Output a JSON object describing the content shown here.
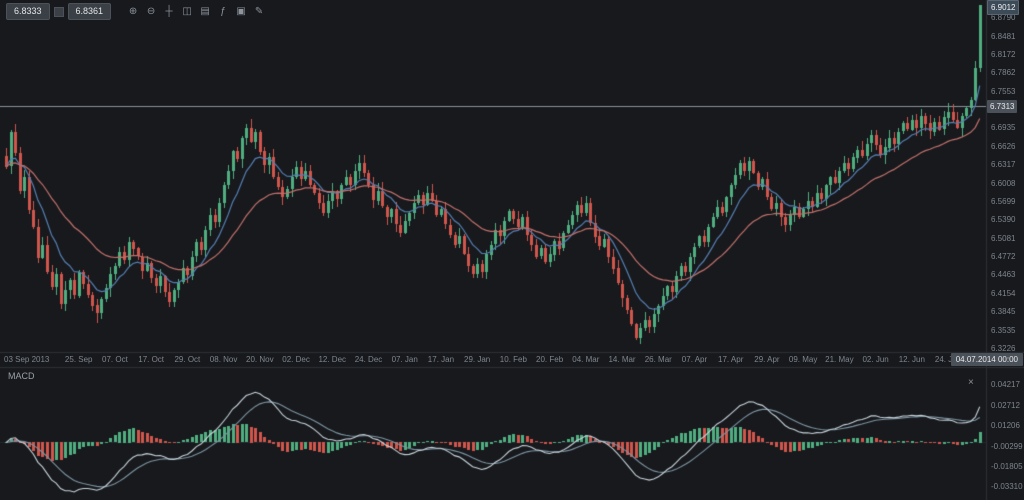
{
  "colors": {
    "background": "#17191d",
    "up": "#4fae7f",
    "down": "#d0554b",
    "ma_fast": "#567fb2",
    "ma_slow": "#c2706b",
    "macd_line": "#c8d4da",
    "macd_signal": "#7e95a3",
    "price_line": "#8a9199",
    "axis_text": "#7f868e",
    "separator": "#2b2f34"
  },
  "toolbar": {
    "sell_price": "6.8333",
    "buy_price": "6.8361",
    "icons": [
      {
        "name": "zoom-in-icon",
        "glyph": "⊕"
      },
      {
        "name": "zoom-out-icon",
        "glyph": "⊖"
      },
      {
        "name": "crosshair-icon",
        "glyph": "┼"
      },
      {
        "name": "candlestick-icon",
        "glyph": "◫"
      },
      {
        "name": "chart-type-icon",
        "glyph": "▤"
      },
      {
        "name": "indicators-icon",
        "glyph": "ƒ"
      },
      {
        "name": "snapshot-icon",
        "glyph": "▣"
      },
      {
        "name": "draw-icon",
        "glyph": "✎"
      }
    ]
  },
  "chart_data": {
    "type": "candlestick",
    "ylim": [
      6.3226,
      6.9012
    ],
    "first_open": 6.648,
    "closes": [
      6.63,
      6.688,
      6.652,
      6.588,
      6.612,
      6.556,
      6.528,
      6.476,
      6.498,
      6.452,
      6.426,
      6.448,
      6.398,
      6.422,
      6.438,
      6.412,
      6.452,
      6.432,
      6.414,
      6.396,
      6.382,
      6.406,
      6.425,
      6.448,
      6.462,
      6.486,
      6.472,
      6.503,
      6.492,
      6.478,
      6.455,
      6.468,
      6.442,
      6.428,
      6.445,
      6.418,
      6.402,
      6.422,
      6.435,
      6.458,
      6.446,
      6.478,
      6.502,
      6.488,
      6.522,
      6.548,
      6.536,
      6.568,
      6.598,
      6.622,
      6.655,
      6.642,
      6.678,
      6.695,
      6.672,
      6.688,
      6.655,
      6.632,
      6.645,
      6.612,
      6.595,
      6.578,
      6.592,
      6.612,
      6.628,
      6.608,
      6.622,
      6.598,
      6.585,
      6.568,
      6.552,
      6.572,
      6.588,
      6.575,
      6.598,
      6.612,
      6.598,
      6.622,
      6.635,
      6.618,
      6.598,
      6.572,
      6.588,
      6.562,
      6.545,
      6.558,
      6.532,
      6.518,
      6.538,
      6.552,
      6.568,
      6.582,
      6.565,
      6.585,
      6.572,
      6.548,
      6.558,
      6.532,
      6.515,
      6.498,
      6.512,
      6.482,
      6.462,
      6.448,
      6.465,
      6.452,
      6.482,
      6.498,
      6.522,
      6.512,
      6.538,
      6.555,
      6.542,
      6.528,
      6.545,
      6.515,
      6.498,
      6.478,
      6.492,
      6.468,
      6.482,
      6.505,
      6.492,
      6.518,
      6.532,
      6.548,
      6.565,
      6.552,
      6.568,
      6.535,
      6.512,
      6.495,
      6.508,
      6.478,
      6.458,
      6.432,
      6.408,
      6.388,
      6.365,
      6.342,
      6.358,
      6.372,
      6.36,
      6.382,
      6.395,
      6.412,
      6.428,
      6.418,
      6.445,
      6.462,
      6.452,
      6.478,
      6.495,
      6.512,
      6.502,
      6.528,
      6.545,
      6.562,
      6.552,
      6.578,
      6.598,
      6.615,
      6.635,
      6.622,
      6.638,
      6.618,
      6.595,
      6.608,
      6.578,
      6.558,
      6.568,
      6.545,
      6.532,
      6.548,
      6.562,
      6.545,
      6.558,
      6.572,
      6.562,
      6.585,
      6.575,
      6.598,
      6.612,
      6.602,
      6.622,
      6.635,
      6.625,
      6.645,
      6.658,
      6.648,
      6.668,
      6.682,
      6.665,
      6.648,
      6.662,
      6.678,
      6.668,
      6.688,
      6.702,
      6.692,
      6.708,
      6.695,
      6.715,
      6.702,
      6.688,
      6.705,
      6.692,
      6.712,
      6.722,
      6.708,
      6.695,
      6.715,
      6.728,
      6.742,
      6.795,
      6.9012
    ],
    "overlays": [
      {
        "name": "ma-fast",
        "period": 9,
        "color": "#567fb2"
      },
      {
        "name": "ma-slow",
        "period": 26,
        "color": "#c2706b"
      }
    ],
    "price_line": 6.7313,
    "price_line_label": "6.7313",
    "current_price": "6.9012",
    "cursor_time": "04.07.2014 00:00",
    "y_ticks": [
      "6.8790",
      "6.8481",
      "6.8172",
      "6.7862",
      "6.7553",
      "6.6935",
      "6.6626",
      "6.6317",
      "6.6008",
      "6.5699",
      "6.5390",
      "6.5081",
      "6.4772",
      "6.4463",
      "6.4154",
      "6.3845",
      "6.3535",
      "6.3226"
    ],
    "x_ticks": [
      {
        "label": "03 Sep 2013",
        "day": 0
      },
      {
        "label": "25. Sep",
        "day": 16
      },
      {
        "label": "07. Oct",
        "day": 24
      },
      {
        "label": "17. Oct",
        "day": 32
      },
      {
        "label": "29. Oct",
        "day": 40
      },
      {
        "label": "08. Nov",
        "day": 48
      },
      {
        "label": "20. Nov",
        "day": 56
      },
      {
        "label": "02. Dec",
        "day": 64
      },
      {
        "label": "12. Dec",
        "day": 72
      },
      {
        "label": "24. Dec",
        "day": 80
      },
      {
        "label": "07. Jan",
        "day": 88
      },
      {
        "label": "17. Jan",
        "day": 96
      },
      {
        "label": "29. Jan",
        "day": 104
      },
      {
        "label": "10. Feb",
        "day": 112
      },
      {
        "label": "20. Feb",
        "day": 120
      },
      {
        "label": "04. Mar",
        "day": 128
      },
      {
        "label": "14. Mar",
        "day": 136
      },
      {
        "label": "26. Mar",
        "day": 144
      },
      {
        "label": "07. Apr",
        "day": 152
      },
      {
        "label": "17. Apr",
        "day": 160
      },
      {
        "label": "29. Apr",
        "day": 168
      },
      {
        "label": "09. May",
        "day": 176
      },
      {
        "label": "21. May",
        "day": 184
      },
      {
        "label": "02. Jun",
        "day": 192
      },
      {
        "label": "12. Jun",
        "day": 200
      },
      {
        "label": "24. Jun",
        "day": 208
      }
    ],
    "indicator": {
      "type": "macd",
      "label": "MACD",
      "close_label": "×",
      "fast": 12,
      "slow": 26,
      "signal": 9,
      "ylim": [
        -0.0395,
        0.052
      ],
      "ticks": [
        "0.04217",
        "0.02712",
        "0.01206",
        "-0.00299",
        "-0.01805",
        "-0.03310"
      ]
    }
  }
}
